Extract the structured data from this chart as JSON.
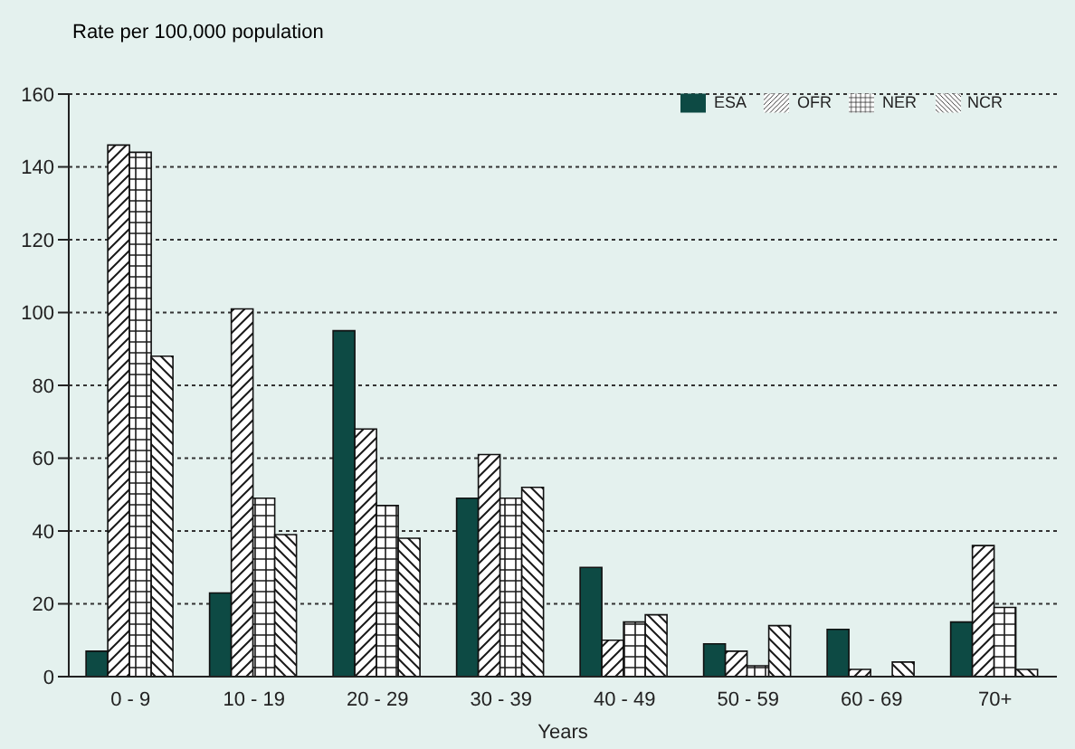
{
  "chart_data": {
    "type": "bar",
    "ylabel": "Rate per 100,000 population",
    "xlabel": "Years",
    "categories": [
      "0 - 9",
      "10 - 19",
      "20 - 29",
      "30 - 39",
      "40 - 49",
      "50 - 59",
      "60 - 69",
      "70+"
    ],
    "series": [
      {
        "name": "ESA",
        "color": "#0d4a44",
        "values": [
          7,
          23,
          95,
          49,
          30,
          9,
          13,
          15
        ]
      },
      {
        "name": "OFR",
        "color": "#1a1a1a",
        "values": [
          146,
          101,
          68,
          61,
          10,
          7,
          2,
          36
        ]
      },
      {
        "name": "NER",
        "color": "#1a1a1a",
        "values": [
          144,
          49,
          47,
          49,
          15,
          3,
          0,
          19
        ]
      },
      {
        "name": "NCR",
        "color": "#1a1a1a",
        "values": [
          88,
          39,
          38,
          52,
          17,
          14,
          4,
          2
        ]
      }
    ],
    "ylim": [
      0,
      160
    ],
    "yticks": [
      0,
      20,
      40,
      60,
      80,
      100,
      120,
      140,
      160
    ],
    "grid": "y",
    "legend": "top right"
  }
}
